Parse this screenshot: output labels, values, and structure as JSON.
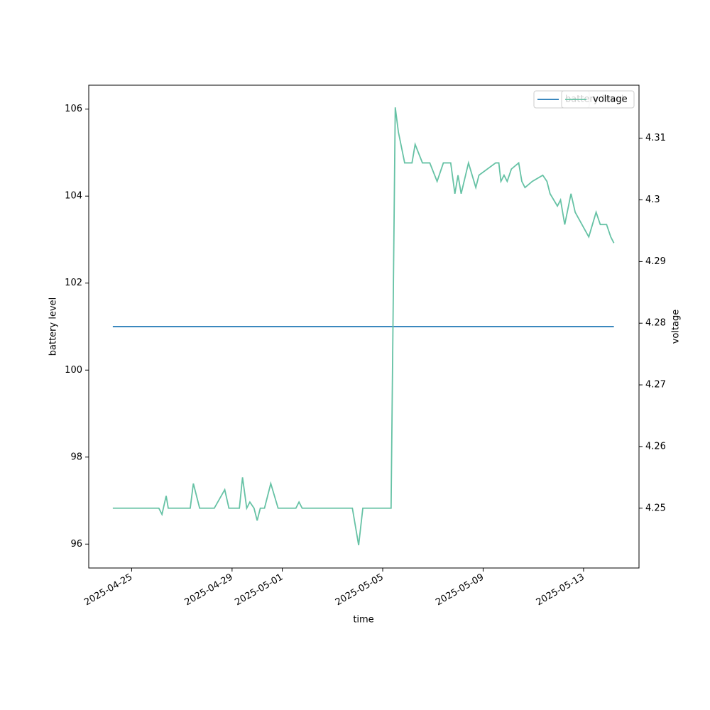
{
  "chart_data": {
    "type": "line",
    "xlabel": "time",
    "ylabel": "battery level",
    "y2label": "voltage",
    "x": [
      "2025-04-24 06:00",
      "2025-04-26 02:00",
      "2025-04-26 05:00",
      "2025-04-26 09:00",
      "2025-04-26 11:00",
      "2025-04-27 08:00",
      "2025-04-27 11:00",
      "2025-04-27 17:00",
      "2025-04-28 07:00",
      "2025-04-28 17:00",
      "2025-04-28 21:00",
      "2025-04-29 07:00",
      "2025-04-29 10:00",
      "2025-04-29 14:00",
      "2025-04-29 17:00",
      "2025-04-29 21:00",
      "2025-04-30 00:00",
      "2025-04-30 03:00",
      "2025-04-30 07:00",
      "2025-04-30 13:00",
      "2025-04-30 20:00",
      "2025-05-01 13:00",
      "2025-05-01 16:00",
      "2025-05-01 19:00",
      "2025-05-03 19:00",
      "2025-05-04 01:00",
      "2025-05-04 05:00",
      "2025-05-05 08:00",
      "2025-05-05 12:00",
      "2025-05-05 15:00",
      "2025-05-05 21:00",
      "2025-05-06 04:00",
      "2025-05-06 07:00",
      "2025-05-06 14:00",
      "2025-05-06 21:00",
      "2025-05-07 04:00",
      "2025-05-07 10:00",
      "2025-05-07 17:00",
      "2025-05-07 21:00",
      "2025-05-08 00:00",
      "2025-05-08 03:00",
      "2025-05-08 10:00",
      "2025-05-08 17:00",
      "2025-05-08 20:00",
      "2025-05-09 12:00",
      "2025-05-09 15:00",
      "2025-05-09 17:00",
      "2025-05-09 20:00",
      "2025-05-09 23:00",
      "2025-05-10 03:00",
      "2025-05-10 10:00",
      "2025-05-10 13:00",
      "2025-05-10 16:00",
      "2025-05-10 23:00",
      "2025-05-11 09:00",
      "2025-05-11 13:00",
      "2025-05-11 16:00",
      "2025-05-11 23:00",
      "2025-05-12 02:00",
      "2025-05-12 06:00",
      "2025-05-12 12:00",
      "2025-05-12 16:00",
      "2025-05-13 05:00",
      "2025-05-13 12:00",
      "2025-05-13 16:00",
      "2025-05-13 22:00",
      "2025-05-14 02:00",
      "2025-05-14 05:00"
    ],
    "series": [
      {
        "name": "battery level",
        "color": "#1f77b4",
        "axis": "y",
        "values": [
          101,
          101,
          101,
          101,
          101,
          101,
          101,
          101,
          101,
          101,
          101,
          101,
          101,
          101,
          101,
          101,
          101,
          101,
          101,
          101,
          101,
          101,
          101,
          101,
          101,
          101,
          101,
          101,
          101,
          101,
          101,
          101,
          101,
          101,
          101,
          101,
          101,
          101,
          101,
          101,
          101,
          101,
          101,
          101,
          101,
          101,
          101,
          101,
          101,
          101,
          101,
          101,
          101,
          101,
          101,
          101,
          101,
          101,
          101,
          101,
          101,
          101,
          101,
          101,
          101,
          101,
          101,
          101
        ]
      },
      {
        "name": "voltage",
        "color": "#66c2a5",
        "axis": "y2",
        "values": [
          4.25,
          4.25,
          4.249,
          4.252,
          4.25,
          4.25,
          4.254,
          4.25,
          4.25,
          4.253,
          4.25,
          4.25,
          4.255,
          4.25,
          4.251,
          4.25,
          4.248,
          4.25,
          4.25,
          4.254,
          4.25,
          4.25,
          4.251,
          4.25,
          4.25,
          4.244,
          4.25,
          4.25,
          4.315,
          4.311,
          4.306,
          4.306,
          4.309,
          4.306,
          4.306,
          4.303,
          4.306,
          4.306,
          4.301,
          4.304,
          4.301,
          4.306,
          4.302,
          4.304,
          4.306,
          4.306,
          4.303,
          4.304,
          4.303,
          4.305,
          4.306,
          4.303,
          4.302,
          4.303,
          4.304,
          4.303,
          4.301,
          4.299,
          4.3,
          4.296,
          4.301,
          4.298,
          4.294,
          4.298,
          4.296,
          4.296,
          4.294,
          4.293
        ]
      }
    ],
    "xlim": [
      "2025-04-23 07:00",
      "2025-05-15 05:00"
    ],
    "xticks": [
      "2025-04-25",
      "2025-04-29",
      "2025-05-01",
      "2025-05-05",
      "2025-05-09",
      "2025-05-13"
    ],
    "ylim": [
      95.45,
      106.55
    ],
    "yticks": [
      96,
      98,
      100,
      102,
      104,
      106
    ],
    "y2lim": [
      4.2403,
      4.3186
    ],
    "y2ticks": [
      4.25,
      4.26,
      4.27,
      4.28,
      4.29,
      4.3,
      4.31
    ],
    "legend": "upper right"
  }
}
